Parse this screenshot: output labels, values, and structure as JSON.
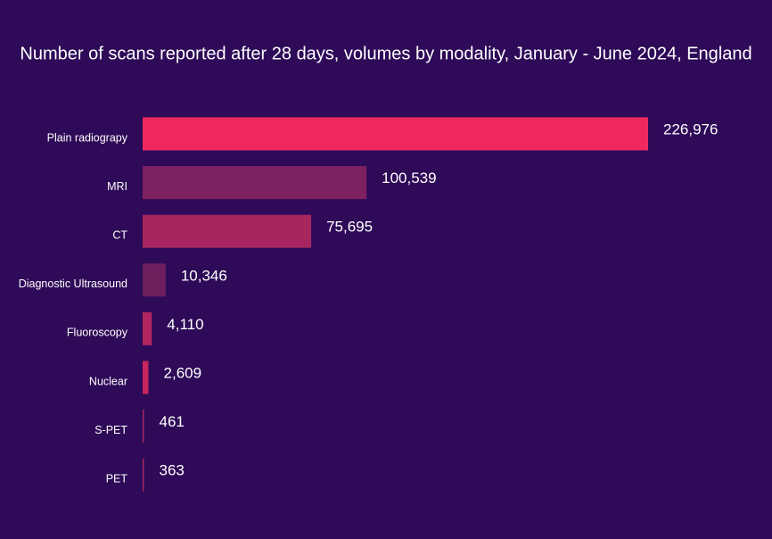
{
  "chart_data": {
    "type": "bar",
    "orientation": "horizontal",
    "title": "Number of scans reported after 28 days, volumes by modality, January - June 2024, England",
    "categories": [
      "Plain radiograpy",
      "MRI",
      "CT",
      "Diagnostic Ultrasound",
      "Fluoroscopy",
      "Nuclear",
      "S-PET",
      "PET"
    ],
    "values": [
      226976,
      100539,
      75695,
      10346,
      4110,
      2609,
      461,
      363
    ],
    "value_labels": [
      "226,976",
      "100,539",
      "75,695",
      "10,346",
      "4,110",
      "2,609",
      "461",
      "363"
    ],
    "colors": [
      "#ef295f",
      "#7e2161",
      "#a8265f",
      "#6d1f5e",
      "#b22560",
      "#c7265f",
      "#a82560",
      "#a82560"
    ]
  }
}
